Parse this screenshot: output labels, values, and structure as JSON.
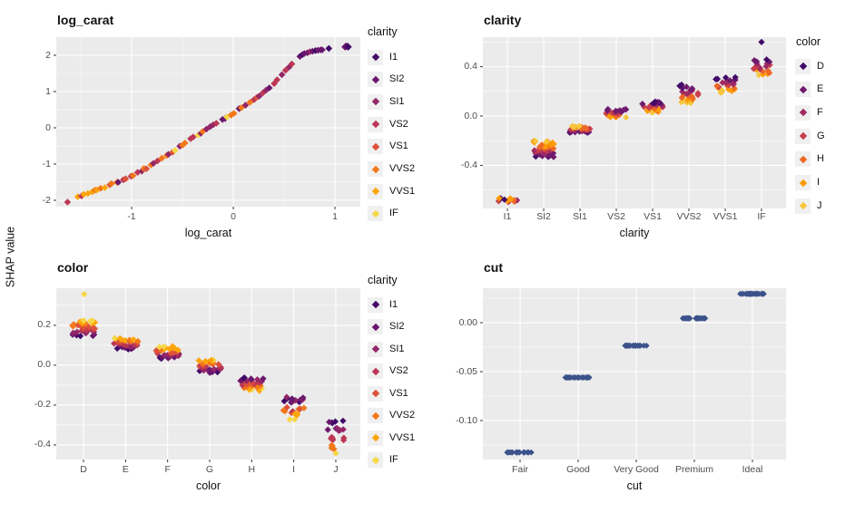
{
  "figure": {
    "ylab": "SHAP value",
    "panel_bg": "#EBEBEB",
    "grid_color": "#FFFFFF",
    "tick_mark_color": "#333333",
    "axis_text_color": "#4D4D4D",
    "solid_point_color": "#3B528B"
  },
  "palettes": {
    "clarity": {
      "labels": [
        "I1",
        "SI2",
        "SI1",
        "VS2",
        "VS1",
        "VVS2",
        "VVS1",
        "IF"
      ],
      "colors": [
        "#420A68",
        "#6A176E",
        "#932667",
        "#BC3754",
        "#DD513A",
        "#F37819",
        "#FCA50A",
        "#F6D746"
      ]
    },
    "color": {
      "labels": [
        "D",
        "E",
        "F",
        "G",
        "H",
        "I",
        "J"
      ],
      "colors": [
        "#420A68",
        "#6F1A6E",
        "#9F2A63",
        "#C83E4D",
        "#ED6925",
        "#FB9B06",
        "#F7C63F"
      ]
    }
  },
  "chart_data": [
    {
      "type": "scatter",
      "title": "log_carat",
      "xlabel": "log_carat",
      "legend_title": "clarity",
      "legend": "clarity",
      "x_axis": {
        "type": "continuous",
        "domain": [
          -1.741,
          1.25
        ],
        "ticks": [
          -1,
          0,
          1
        ],
        "tick_labels": [
          "-1",
          "0",
          "1"
        ],
        "minor": [
          -1.5,
          -0.5,
          0.5
        ]
      },
      "y_axis": {
        "domain": [
          -2.175,
          2.5
        ],
        "ticks": [
          2,
          1,
          0,
          -1,
          -2
        ],
        "tick_labels": [
          "2",
          "1",
          "0",
          "-1",
          "-2"
        ],
        "minor": [
          1.5,
          0.5,
          -0.5,
          -1.5
        ]
      },
      "curve_anchors": [
        [
          -1.55,
          -1.92
        ],
        [
          -1.45,
          -1.82
        ],
        [
          -1.3,
          -1.67
        ],
        [
          -1.15,
          -1.5
        ],
        [
          -1.0,
          -1.33
        ],
        [
          -0.85,
          -1.1
        ],
        [
          -0.7,
          -0.85
        ],
        [
          -0.55,
          -0.58
        ],
        [
          -0.4,
          -0.28
        ],
        [
          -0.25,
          -0.02
        ],
        [
          -0.1,
          0.22
        ],
        [
          0.0,
          0.4
        ],
        [
          0.15,
          0.68
        ],
        [
          0.3,
          0.97
        ],
        [
          0.42,
          1.28
        ],
        [
          0.52,
          1.6
        ],
        [
          0.59,
          1.78
        ]
      ],
      "n_line_points": 62,
      "isolated_points": [
        {
          "x": -1.63,
          "y": -2.05,
          "ci": 3
        }
      ],
      "flat_cluster": [
        [
          0.655,
          1.97
        ],
        [
          0.68,
          2.02
        ],
        [
          0.7,
          2.05
        ],
        [
          0.73,
          2.07
        ],
        [
          0.755,
          2.1
        ],
        [
          0.78,
          2.11
        ],
        [
          0.81,
          2.13
        ],
        [
          0.835,
          2.14
        ],
        [
          0.86,
          2.15
        ],
        [
          0.875,
          2.15
        ]
      ],
      "flat_cluster_ci": [
        1,
        0,
        1,
        1,
        2,
        1,
        0,
        1,
        1,
        1
      ],
      "top_points": [
        [
          0.94,
          2.19
        ],
        [
          1.1,
          2.23
        ],
        [
          1.125,
          2.245
        ],
        [
          1.11,
          2.25
        ],
        [
          1.13,
          2.23
        ]
      ],
      "color_zones": [
        {
          "x_max": -1.25,
          "pool": [
            5,
            6,
            4,
            5,
            6,
            3,
            5,
            4,
            6,
            2
          ]
        },
        {
          "x_max": -0.55,
          "pool": [
            4,
            5,
            3,
            6,
            2,
            4,
            5,
            1,
            6,
            3,
            4,
            7,
            5,
            2
          ]
        },
        {
          "x_max": 0.2,
          "pool": [
            2,
            3,
            1,
            4,
            5,
            2,
            6,
            0,
            3,
            7,
            1,
            4,
            2,
            5
          ]
        },
        {
          "x_max": 9,
          "pool": [
            1,
            2,
            3,
            2,
            0,
            3,
            1,
            4,
            2,
            5,
            3,
            1
          ]
        }
      ]
    },
    {
      "type": "strip",
      "title": "clarity",
      "xlabel": "clarity",
      "legend_title": "color",
      "legend": "color",
      "palette": "color",
      "categories": [
        "I1",
        "SI2",
        "SI1",
        "VS2",
        "VS1",
        "VVS2",
        "VVS1",
        "IF"
      ],
      "y_axis": {
        "domain": [
          -0.75,
          0.64
        ],
        "ticks": [
          0.4,
          0.0,
          -0.4
        ],
        "tick_labels": [
          "0.4",
          "0.0",
          "-0.4"
        ],
        "minor": [
          0.6,
          0.2,
          -0.2,
          -0.6
        ]
      },
      "clusters": [
        {
          "cat": 0,
          "y": [
            -0.7,
            -0.664
          ],
          "n": 11,
          "xr": [
            -0.27,
            0.27
          ],
          "ci": [
            3,
            4,
            2,
            5,
            0,
            4,
            3,
            5,
            2,
            4,
            3
          ]
        },
        {
          "cat": 1,
          "y": [
            -0.335,
            -0.2
          ],
          "n": 44,
          "xr": [
            -0.3,
            0.3
          ],
          "mode": "dark_bottom"
        },
        {
          "cat": 2,
          "y": [
            -0.136,
            -0.08
          ],
          "n": 30,
          "xr": [
            -0.3,
            0.3
          ],
          "mode": "dark_bottom"
        },
        {
          "cat": 3,
          "y": [
            -0.014,
            0.058
          ],
          "n": 26,
          "xr": [
            -0.28,
            0.28
          ],
          "mode": "dark_top"
        },
        {
          "cat": 4,
          "y": [
            0.028,
            0.12
          ],
          "n": 26,
          "xr": [
            -0.28,
            0.28
          ],
          "mode": "dark_top"
        },
        {
          "cat": 5,
          "y": [
            0.1,
            0.255
          ],
          "n": 26,
          "xr": [
            -0.28,
            0.28
          ],
          "mode": "dark_top"
        },
        {
          "cat": 6,
          "y": [
            0.19,
            0.318
          ],
          "n": 24,
          "xr": [
            -0.28,
            0.28
          ],
          "mode": "dark_top"
        },
        {
          "cat": 7,
          "y": [
            0.33,
            0.46
          ],
          "n": 20,
          "xr": [
            -0.24,
            0.24
          ],
          "mode": "dark_top"
        },
        {
          "cat": 7,
          "y": [
            0.6,
            0.6
          ],
          "n": 1,
          "xr": [
            0,
            0
          ],
          "ci": [
            0
          ]
        }
      ]
    },
    {
      "type": "strip",
      "title": "color",
      "xlabel": "color",
      "legend_title": "clarity",
      "legend": "clarity",
      "palette": "clarity",
      "categories": [
        "D",
        "E",
        "F",
        "G",
        "H",
        "I",
        "J"
      ],
      "y_axis": {
        "domain": [
          -0.473,
          0.386
        ],
        "ticks": [
          0.2,
          0.0,
          -0.2,
          -0.4
        ],
        "tick_labels": [
          "0.2",
          "0.0",
          "-0.2",
          "-0.4"
        ],
        "minor": [
          0.3,
          0.1,
          -0.1,
          -0.3
        ]
      },
      "clusters": [
        {
          "cat": 0,
          "y": [
            0.145,
            0.225
          ],
          "n": 40,
          "xr": [
            -0.28,
            0.28
          ],
          "mode": "dark_bottom"
        },
        {
          "cat": 0,
          "y": [
            0.356,
            0.356
          ],
          "n": 1,
          "xr": [
            -0.02,
            0.02
          ],
          "ci": [
            7
          ]
        },
        {
          "cat": 1,
          "y": [
            0.08,
            0.136
          ],
          "n": 32,
          "xr": [
            -0.3,
            0.3
          ],
          "mode": "dark_bottom"
        },
        {
          "cat": 2,
          "y": [
            0.032,
            0.095
          ],
          "n": 32,
          "xr": [
            -0.28,
            0.28
          ],
          "mode": "dark_bottom"
        },
        {
          "cat": 3,
          "y": [
            -0.038,
            0.028
          ],
          "n": 30,
          "xr": [
            -0.28,
            0.28
          ],
          "mode": "dark_bottom"
        },
        {
          "cat": 4,
          "y": [
            -0.128,
            -0.06
          ],
          "n": 30,
          "xr": [
            -0.28,
            0.28
          ],
          "mode": "dark_top"
        },
        {
          "cat": 5,
          "y": [
            -0.188,
            -0.16
          ],
          "n": 12,
          "xr": [
            -0.26,
            0.26
          ],
          "ci": [
            0,
            1,
            1,
            2
          ]
        },
        {
          "cat": 5,
          "y": [
            -0.24,
            -0.21
          ],
          "n": 10,
          "xr": [
            -0.26,
            0.26
          ],
          "ci": [
            3,
            4,
            4,
            5
          ]
        },
        {
          "cat": 5,
          "y": [
            -0.252,
            -0.24
          ],
          "n": 3,
          "xr": [
            -0.16,
            0.1
          ],
          "ci": [
            6
          ]
        },
        {
          "cat": 5,
          "y": [
            -0.272,
            -0.272
          ],
          "n": 2,
          "xr": [
            -0.12,
            0.02
          ],
          "ci": [
            7
          ]
        },
        {
          "cat": 6,
          "y": [
            -0.292,
            -0.276
          ],
          "n": 5,
          "xr": [
            -0.2,
            0.2
          ],
          "ci": [
            0,
            1
          ]
        },
        {
          "cat": 6,
          "y": [
            -0.33,
            -0.314
          ],
          "n": 6,
          "xr": [
            -0.21,
            0.21
          ],
          "ci": [
            1,
            2,
            2
          ]
        },
        {
          "cat": 6,
          "y": [
            -0.376,
            -0.358
          ],
          "n": 6,
          "xr": [
            -0.21,
            0.21
          ],
          "ci": [
            3,
            4,
            3
          ]
        },
        {
          "cat": 6,
          "y": [
            -0.42,
            -0.4
          ],
          "n": 4,
          "xr": [
            -0.17,
            0.17
          ],
          "ci": [
            5,
            6,
            5
          ]
        },
        {
          "cat": 6,
          "y": [
            -0.442,
            -0.442
          ],
          "n": 1,
          "xr": [
            -0.02,
            0.02
          ],
          "ci": [
            7
          ]
        }
      ]
    },
    {
      "type": "strip",
      "title": "cut",
      "xlabel": "cut",
      "legend_title": null,
      "legend": null,
      "palette": "solid",
      "categories": [
        "Fair",
        "Good",
        "Very Good",
        "Premium",
        "Ideal"
      ],
      "y_axis": {
        "domain": [
          -0.1398,
          0.0352
        ],
        "ticks": [
          0.0,
          -0.05,
          -0.1
        ],
        "tick_labels": [
          "0.00",
          "-0.05",
          "-0.10"
        ],
        "minor": [
          0.025,
          -0.025,
          -0.075,
          -0.125
        ]
      },
      "clusters": [
        {
          "cat": 0,
          "y": [
            -0.1325,
            -0.1325
          ],
          "n": 6,
          "xr": [
            -0.23,
            -0.13
          ]
        },
        {
          "cat": 0,
          "y": [
            -0.1325,
            -0.1325
          ],
          "n": 7,
          "xr": [
            -0.08,
            0.02
          ]
        },
        {
          "cat": 0,
          "y": [
            -0.1325,
            -0.1325
          ],
          "n": 8,
          "xr": [
            0.06,
            0.2
          ]
        },
        {
          "cat": 1,
          "y": [
            -0.056,
            -0.056
          ],
          "n": 22,
          "xr": [
            -0.22,
            0.2
          ]
        },
        {
          "cat": 2,
          "y": [
            -0.0235,
            -0.0235
          ],
          "n": 22,
          "xr": [
            -0.21,
            0.21
          ]
        },
        {
          "cat": 3,
          "y": [
            0.0045,
            0.0045
          ],
          "n": 22,
          "xr": [
            -0.21,
            0.21
          ]
        },
        {
          "cat": 4,
          "y": [
            0.0295,
            0.0295
          ],
          "n": 22,
          "xr": [
            -0.23,
            0.2
          ]
        }
      ]
    }
  ]
}
